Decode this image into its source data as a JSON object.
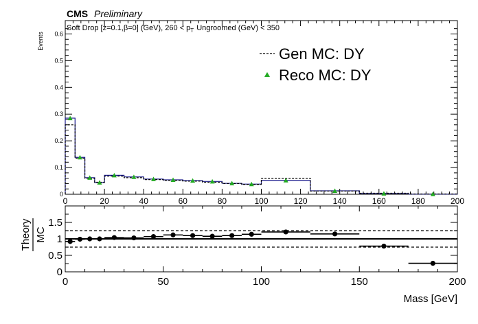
{
  "header": {
    "experiment": "CMS",
    "status": "Preliminary",
    "subtitle_prefix": "Soft Drop [z=0.1,β=0] (GeV), 260 < p",
    "subtitle_sub": "T",
    "subtitle_suffix": "Ungroomed (GeV)  < 350"
  },
  "colors": {
    "gen": "#000000",
    "reco_marker": "#22aa22",
    "reco_line": "#1a1a8c",
    "ratio_marker": "#000000"
  },
  "chart_data": [
    {
      "type": "line",
      "title": "",
      "xlabel": "",
      "ylabel": "Events",
      "xlim": [
        0,
        200
      ],
      "ylim": [
        0,
        0.65
      ],
      "x_ticks": [
        0,
        20,
        40,
        60,
        80,
        100,
        120,
        140,
        160,
        180,
        200
      ],
      "y_ticks": [
        0,
        0.1,
        0.2,
        0.3,
        0.4,
        0.5,
        0.6
      ],
      "y_tick_labels": [
        "0",
        "0.1",
        "0.2",
        "0.3",
        "0.4",
        "0.5",
        "0.6"
      ],
      "bin_edges": [
        0,
        5,
        10,
        15,
        20,
        30,
        40,
        50,
        60,
        70,
        80,
        90,
        100,
        125,
        150,
        175,
        200
      ],
      "legend_position": "top-right",
      "series": [
        {
          "name": "Gen MC: DY",
          "style": "dashed-step",
          "values": [
            0.26,
            0.135,
            0.06,
            0.045,
            0.068,
            0.062,
            0.055,
            0.052,
            0.049,
            0.045,
            0.04,
            0.037,
            0.06,
            0.012,
            0.004,
            0.001
          ]
        },
        {
          "name": "Reco MC: DY",
          "style": "triangle-markers",
          "x": [
            2.5,
            7.5,
            12.5,
            17.5,
            25,
            35,
            45,
            55,
            65,
            75,
            85,
            95,
            112.5,
            137.5,
            162.5,
            187.5
          ],
          "values": [
            0.285,
            0.138,
            0.062,
            0.044,
            0.071,
            0.065,
            0.057,
            0.054,
            0.051,
            0.048,
            0.041,
            0.038,
            0.052,
            0.013,
            0.003,
            0.0005
          ]
        }
      ]
    },
    {
      "type": "scatter",
      "title": "",
      "xlabel": "Mass [GeV]",
      "ylabel_num": "Theory",
      "ylabel_den": "MC",
      "xlim": [
        0,
        200
      ],
      "ylim": [
        0,
        2
      ],
      "x_ticks": [
        0,
        50,
        100,
        150,
        200
      ],
      "y_ticks": [
        0,
        0.5,
        1,
        1.5
      ],
      "reference_lines": [
        1.25,
        0.75
      ],
      "unity_line": 1,
      "points": {
        "x": [
          2.5,
          7.5,
          12.5,
          17.5,
          25,
          35,
          45,
          55,
          65,
          75,
          85,
          95,
          112.5,
          137.5,
          162.5,
          187.5
        ],
        "x_low": [
          0,
          5,
          10,
          15,
          20,
          30,
          40,
          50,
          60,
          70,
          80,
          90,
          100,
          125,
          150,
          175
        ],
        "x_high": [
          5,
          10,
          15,
          20,
          30,
          40,
          50,
          60,
          70,
          80,
          90,
          100,
          125,
          150,
          175,
          200
        ],
        "values": [
          0.92,
          0.99,
          1.0,
          1.0,
          1.04,
          1.03,
          1.07,
          1.12,
          1.1,
          1.08,
          1.1,
          1.14,
          1.21,
          1.15,
          0.78,
          0.26
        ]
      }
    }
  ]
}
